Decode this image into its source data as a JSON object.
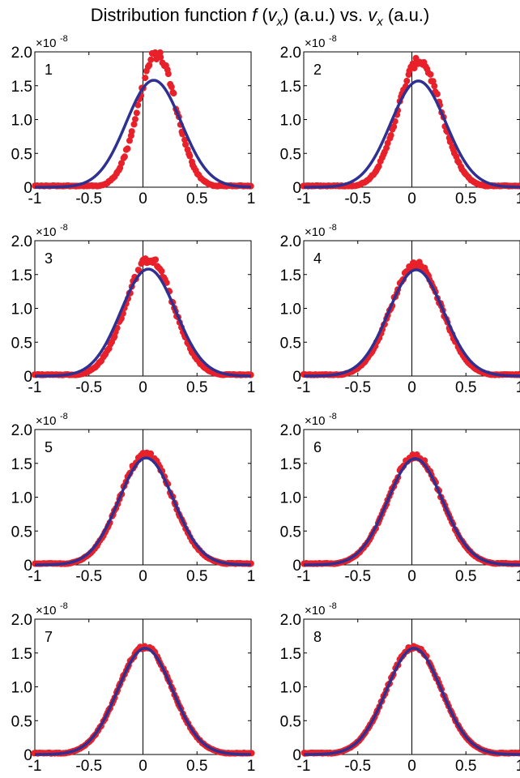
{
  "title": {
    "prefix": "Distribution function ",
    "fn": "f",
    "open": " (",
    "var": "v",
    "sub": "x",
    "mid": ") (a.u.) vs. ",
    "var2": "v",
    "sub2": "x",
    "suffix": " (a.u.)"
  },
  "multiplier": "×10",
  "multiplier_exp": "-8",
  "x_ticks": [
    "-1",
    "-0.5",
    "0",
    "0.5",
    "1"
  ],
  "x_tick_values": [
    -1,
    -0.5,
    0,
    0.5,
    1
  ],
  "y_ticks": [
    "0",
    "0.5",
    "1.0",
    "1.5",
    "2.0"
  ],
  "y_tick_values": [
    0,
    0.5,
    1.0,
    1.5,
    2.0
  ],
  "colors": {
    "scatter": "#e8202a",
    "fit": "#2e3192",
    "axis": "#000000"
  },
  "chart_data": [
    {
      "type": "scatter",
      "panel_label": "1",
      "xlim": [
        -1,
        1
      ],
      "ylim": [
        0,
        2.0
      ],
      "fit": {
        "mu": 0.1,
        "peak": 1.58,
        "sigma": 0.254
      },
      "points": {
        "mu": 0.13,
        "peak": 1.97,
        "sigma": 0.176,
        "noise": 0.08
      }
    },
    {
      "type": "scatter",
      "panel_label": "2",
      "xlim": [
        -1,
        1
      ],
      "ylim": [
        0,
        2.0
      ],
      "fit": {
        "mu": 0.06,
        "peak": 1.57,
        "sigma": 0.254
      },
      "points": {
        "mu": 0.07,
        "peak": 1.87,
        "sigma": 0.2,
        "noise": 0.06
      }
    },
    {
      "type": "scatter",
      "panel_label": "3",
      "xlim": [
        -1,
        1
      ],
      "ylim": [
        0,
        2.0
      ],
      "fit": {
        "mu": 0.05,
        "peak": 1.58,
        "sigma": 0.254
      },
      "points": {
        "mu": 0.06,
        "peak": 1.73,
        "sigma": 0.222,
        "noise": 0.05
      }
    },
    {
      "type": "scatter",
      "panel_label": "4",
      "xlim": [
        -1,
        1
      ],
      "ylim": [
        0,
        2.0
      ],
      "fit": {
        "mu": 0.04,
        "peak": 1.57,
        "sigma": 0.254
      },
      "points": {
        "mu": 0.04,
        "peak": 1.66,
        "sigma": 0.235,
        "noise": 0.04
      }
    },
    {
      "type": "scatter",
      "panel_label": "5",
      "xlim": [
        -1,
        1
      ],
      "ylim": [
        0,
        2.0
      ],
      "fit": {
        "mu": 0.03,
        "peak": 1.58,
        "sigma": 0.254
      },
      "points": {
        "mu": 0.03,
        "peak": 1.64,
        "sigma": 0.244,
        "noise": 0.035
      }
    },
    {
      "type": "scatter",
      "panel_label": "6",
      "xlim": [
        -1,
        1
      ],
      "ylim": [
        0,
        2.0
      ],
      "fit": {
        "mu": 0.03,
        "peak": 1.57,
        "sigma": 0.254
      },
      "points": {
        "mu": 0.03,
        "peak": 1.61,
        "sigma": 0.248,
        "noise": 0.03
      }
    },
    {
      "type": "scatter",
      "panel_label": "7",
      "xlim": [
        -1,
        1
      ],
      "ylim": [
        0,
        2.0
      ],
      "fit": {
        "mu": 0.02,
        "peak": 1.57,
        "sigma": 0.254
      },
      "points": {
        "mu": 0.02,
        "peak": 1.59,
        "sigma": 0.251,
        "noise": 0.025
      }
    },
    {
      "type": "scatter",
      "panel_label": "8",
      "xlim": [
        -1,
        1
      ],
      "ylim": [
        0,
        2.0
      ],
      "fit": {
        "mu": 0.02,
        "peak": 1.57,
        "sigma": 0.254
      },
      "points": {
        "mu": 0.02,
        "peak": 1.59,
        "sigma": 0.252,
        "noise": 0.025
      }
    }
  ]
}
